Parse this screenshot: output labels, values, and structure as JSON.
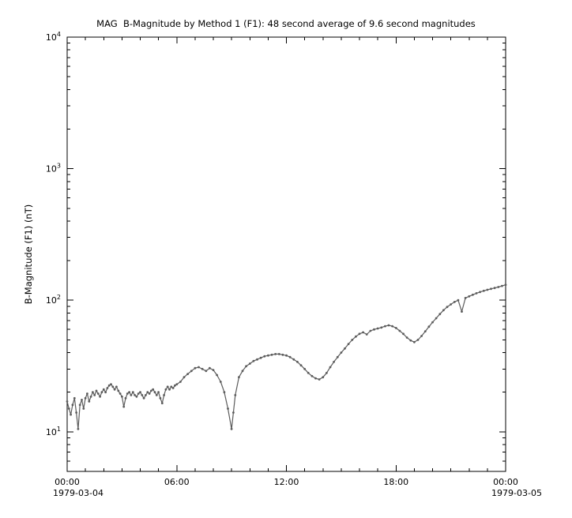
{
  "window": {
    "background": "#ffffff",
    "axis_color": "#000000"
  },
  "chart_data": {
    "type": "line",
    "title": "MAG  B-Magnitude by Method 1 (F1): 48 second average of 9.6 second magnitudes",
    "ylabel": "B-Magnitude (F1) (nT)",
    "xlabel": "",
    "y_scale": "log",
    "axis_ylim": [
      5,
      10000
    ],
    "xlim_hours": [
      0,
      24
    ],
    "grid": false,
    "legend": "none",
    "x_ticks": [
      {
        "hours": 0,
        "label": "00:00"
      },
      {
        "hours": 6,
        "label": "06:00"
      },
      {
        "hours": 12,
        "label": "12:00"
      },
      {
        "hours": 18,
        "label": "18:00"
      },
      {
        "hours": 24,
        "label": "00:00"
      }
    ],
    "x_minor_tick_hours": 1,
    "xlabel_start_date": "1979-03-04",
    "xlabel_end_date": "1979-03-05",
    "y_ticks": [
      {
        "value": 10,
        "base": "10",
        "exp": "1"
      },
      {
        "value": 100,
        "base": "10",
        "exp": "2"
      },
      {
        "value": 1000,
        "base": "10",
        "exp": "3"
      },
      {
        "value": 10000,
        "base": "10",
        "exp": "4"
      }
    ],
    "series": [
      {
        "name": "B-Magnitude (F1) 48 second average",
        "color": "#5c5c5c",
        "marker": "dot",
        "points": [
          [
            0,
            17
          ],
          [
            0.1,
            15
          ],
          [
            0.2,
            13.5
          ],
          [
            0.3,
            16
          ],
          [
            0.4,
            18
          ],
          [
            0.5,
            14
          ],
          [
            0.6,
            10.5
          ],
          [
            0.7,
            16
          ],
          [
            0.8,
            17.5
          ],
          [
            0.9,
            15
          ],
          [
            1,
            18
          ],
          [
            1.1,
            19.5
          ],
          [
            1.2,
            17
          ],
          [
            1.3,
            18.5
          ],
          [
            1.4,
            20
          ],
          [
            1.5,
            19
          ],
          [
            1.6,
            20.5
          ],
          [
            1.7,
            19.5
          ],
          [
            1.8,
            18.5
          ],
          [
            1.9,
            20
          ],
          [
            2,
            21
          ],
          [
            2.1,
            20
          ],
          [
            2.2,
            21.5
          ],
          [
            2.3,
            22.5
          ],
          [
            2.4,
            23
          ],
          [
            2.5,
            22
          ],
          [
            2.6,
            21
          ],
          [
            2.7,
            22
          ],
          [
            2.8,
            20.5
          ],
          [
            2.9,
            19.5
          ],
          [
            3,
            18.5
          ],
          [
            3.1,
            15.5
          ],
          [
            3.2,
            18
          ],
          [
            3.3,
            19.5
          ],
          [
            3.4,
            20
          ],
          [
            3.5,
            19
          ],
          [
            3.6,
            20
          ],
          [
            3.7,
            19
          ],
          [
            3.8,
            18.5
          ],
          [
            3.9,
            19.5
          ],
          [
            4,
            20
          ],
          [
            4.1,
            19
          ],
          [
            4.2,
            18
          ],
          [
            4.3,
            19
          ],
          [
            4.4,
            20
          ],
          [
            4.5,
            19.5
          ],
          [
            4.6,
            20.5
          ],
          [
            4.7,
            21
          ],
          [
            4.8,
            20
          ],
          [
            4.9,
            19
          ],
          [
            5,
            20
          ],
          [
            5.1,
            18
          ],
          [
            5.2,
            16.5
          ],
          [
            5.3,
            19
          ],
          [
            5.4,
            21
          ],
          [
            5.5,
            22
          ],
          [
            5.6,
            21
          ],
          [
            5.7,
            22
          ],
          [
            5.8,
            21.5
          ],
          [
            5.9,
            22.5
          ],
          [
            6,
            23
          ],
          [
            6.2,
            24
          ],
          [
            6.4,
            26
          ],
          [
            6.6,
            27.5
          ],
          [
            6.8,
            29
          ],
          [
            7,
            30.5
          ],
          [
            7.2,
            31
          ],
          [
            7.4,
            30
          ],
          [
            7.6,
            29
          ],
          [
            7.8,
            30.5
          ],
          [
            8,
            29.5
          ],
          [
            8.2,
            27
          ],
          [
            8.4,
            24
          ],
          [
            8.6,
            20
          ],
          [
            8.8,
            15
          ],
          [
            9,
            10.5
          ],
          [
            9.1,
            14
          ],
          [
            9.2,
            19
          ],
          [
            9.4,
            26
          ],
          [
            9.6,
            29
          ],
          [
            9.8,
            31.5
          ],
          [
            10,
            33
          ],
          [
            10.2,
            34.5
          ],
          [
            10.4,
            35.5
          ],
          [
            10.6,
            36.5
          ],
          [
            10.8,
            37.5
          ],
          [
            11,
            38
          ],
          [
            11.2,
            38.5
          ],
          [
            11.4,
            39
          ],
          [
            11.6,
            39
          ],
          [
            11.8,
            38.5
          ],
          [
            12,
            38
          ],
          [
            12.2,
            37
          ],
          [
            12.4,
            35.5
          ],
          [
            12.6,
            34
          ],
          [
            12.8,
            32
          ],
          [
            13,
            30
          ],
          [
            13.2,
            28
          ],
          [
            13.4,
            26.5
          ],
          [
            13.6,
            25.5
          ],
          [
            13.8,
            25
          ],
          [
            14,
            26
          ],
          [
            14.2,
            28
          ],
          [
            14.4,
            31
          ],
          [
            14.6,
            34
          ],
          [
            14.8,
            37
          ],
          [
            15,
            40
          ],
          [
            15.2,
            43
          ],
          [
            15.4,
            46.5
          ],
          [
            15.6,
            50
          ],
          [
            15.8,
            53
          ],
          [
            16,
            55.5
          ],
          [
            16.2,
            57
          ],
          [
            16.4,
            55
          ],
          [
            16.6,
            58.5
          ],
          [
            16.8,
            60
          ],
          [
            17,
            61
          ],
          [
            17.2,
            62
          ],
          [
            17.4,
            63.5
          ],
          [
            17.6,
            64.5
          ],
          [
            17.8,
            63.5
          ],
          [
            18,
            61.5
          ],
          [
            18.2,
            58.5
          ],
          [
            18.4,
            55.5
          ],
          [
            18.6,
            52
          ],
          [
            18.8,
            49.5
          ],
          [
            19,
            48
          ],
          [
            19.2,
            50
          ],
          [
            19.4,
            53.5
          ],
          [
            19.6,
            58
          ],
          [
            19.8,
            63
          ],
          [
            20,
            68
          ],
          [
            20.2,
            73
          ],
          [
            20.4,
            78.5
          ],
          [
            20.6,
            84
          ],
          [
            20.8,
            89
          ],
          [
            21,
            93
          ],
          [
            21.2,
            97
          ],
          [
            21.4,
            100
          ],
          [
            21.6,
            82
          ],
          [
            21.8,
            104
          ],
          [
            22,
            107
          ],
          [
            22.2,
            110
          ],
          [
            22.4,
            113
          ],
          [
            22.6,
            115.5
          ],
          [
            22.8,
            118
          ],
          [
            23,
            120
          ],
          [
            23.2,
            122
          ],
          [
            23.4,
            124
          ],
          [
            23.6,
            126
          ],
          [
            23.8,
            128.5
          ],
          [
            24,
            131
          ]
        ]
      }
    ]
  }
}
